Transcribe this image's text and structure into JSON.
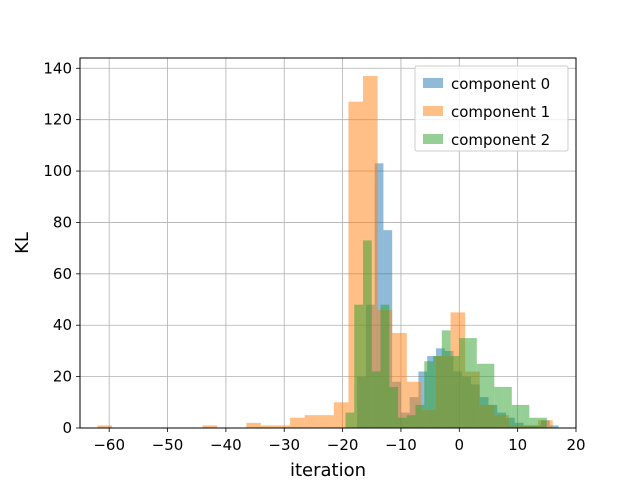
{
  "chart_data": {
    "type": "bar",
    "subtype": "overlapping histogram",
    "xlabel": "iteration",
    "ylabel": "KL",
    "xlim": [
      -65,
      20
    ],
    "ylim": [
      0,
      144
    ],
    "grid": true,
    "legend_position": "top-right",
    "x_ticks": [
      -60,
      -50,
      -40,
      -30,
      -20,
      -10,
      0,
      10,
      20
    ],
    "y_ticks": [
      0,
      20,
      40,
      60,
      80,
      100,
      120,
      140
    ],
    "series": [
      {
        "name": "component 0",
        "color": "#1f77b4",
        "opacity": 0.5,
        "bins": [
          {
            "x0": -17.5,
            "x1": -16.0,
            "value": 20
          },
          {
            "x0": -16.0,
            "x1": -14.5,
            "value": 48
          },
          {
            "x0": -14.5,
            "x1": -13.0,
            "value": 103
          },
          {
            "x0": -13.0,
            "x1": -11.5,
            "value": 77
          },
          {
            "x0": -11.5,
            "x1": -10.0,
            "value": 18
          },
          {
            "x0": -10.0,
            "x1": -8.5,
            "value": 6
          },
          {
            "x0": -8.5,
            "x1": -7.0,
            "value": 12
          },
          {
            "x0": -7.0,
            "x1": -5.5,
            "value": 22
          },
          {
            "x0": -5.5,
            "x1": -4.0,
            "value": 28
          },
          {
            "x0": -4.0,
            "x1": -2.5,
            "value": 31
          },
          {
            "x0": -2.5,
            "x1": -1.0,
            "value": 30
          },
          {
            "x0": -1.0,
            "x1": 0.5,
            "value": 22
          },
          {
            "x0": 0.5,
            "x1": 2.0,
            "value": 20
          },
          {
            "x0": 2.0,
            "x1": 3.5,
            "value": 17
          },
          {
            "x0": 3.5,
            "x1": 5.0,
            "value": 12
          },
          {
            "x0": 5.0,
            "x1": 6.5,
            "value": 9
          },
          {
            "x0": 6.5,
            "x1": 8.0,
            "value": 6
          },
          {
            "x0": 8.0,
            "x1": 9.5,
            "value": 4
          },
          {
            "x0": 9.5,
            "x1": 11.0,
            "value": 2
          },
          {
            "x0": 11.0,
            "x1": 12.5,
            "value": 1
          },
          {
            "x0": 12.5,
            "x1": 14.0,
            "value": 1
          },
          {
            "x0": 14.0,
            "x1": 15.5,
            "value": 3
          },
          {
            "x0": 15.5,
            "x1": 17.0,
            "value": 1
          }
        ]
      },
      {
        "name": "component 1",
        "color": "#ff7f0e",
        "opacity": 0.5,
        "bins": [
          {
            "x0": -62.0,
            "x1": -59.5,
            "value": 1
          },
          {
            "x0": -44.0,
            "x1": -41.5,
            "value": 1
          },
          {
            "x0": -36.5,
            "x1": -34.0,
            "value": 2
          },
          {
            "x0": -34.0,
            "x1": -31.5,
            "value": 1
          },
          {
            "x0": -31.5,
            "x1": -29.0,
            "value": 1
          },
          {
            "x0": -29.0,
            "x1": -26.5,
            "value": 4
          },
          {
            "x0": -26.5,
            "x1": -24.0,
            "value": 5
          },
          {
            "x0": -24.0,
            "x1": -21.5,
            "value": 5
          },
          {
            "x0": -21.5,
            "x1": -19.0,
            "value": 10
          },
          {
            "x0": -19.0,
            "x1": -16.5,
            "value": 127
          },
          {
            "x0": -16.5,
            "x1": -14.0,
            "value": 137
          },
          {
            "x0": -14.0,
            "x1": -11.5,
            "value": 46
          },
          {
            "x0": -11.5,
            "x1": -9.0,
            "value": 37
          },
          {
            "x0": -9.0,
            "x1": -6.5,
            "value": 18
          },
          {
            "x0": -6.5,
            "x1": -4.0,
            "value": 7
          },
          {
            "x0": -4.0,
            "x1": -1.5,
            "value": 28
          },
          {
            "x0": -1.5,
            "x1": 1.0,
            "value": 45
          },
          {
            "x0": 1.0,
            "x1": 3.5,
            "value": 22
          },
          {
            "x0": 3.5,
            "x1": 6.0,
            "value": 9
          },
          {
            "x0": 6.0,
            "x1": 8.5,
            "value": 5
          },
          {
            "x0": 8.5,
            "x1": 11.0,
            "value": 1
          },
          {
            "x0": 11.0,
            "x1": 13.5,
            "value": 1
          },
          {
            "x0": 13.5,
            "x1": 16.0,
            "value": 3
          }
        ]
      },
      {
        "name": "component 2",
        "color": "#2ca02c",
        "opacity": 0.5,
        "bins": [
          {
            "x0": -19.5,
            "x1": -18.0,
            "value": 6
          },
          {
            "x0": -18.0,
            "x1": -16.5,
            "value": 48
          },
          {
            "x0": -16.5,
            "x1": -15.0,
            "value": 73
          },
          {
            "x0": -15.0,
            "x1": -13.5,
            "value": 22
          },
          {
            "x0": -13.5,
            "x1": -12.0,
            "value": 48
          },
          {
            "x0": -12.0,
            "x1": -10.5,
            "value": 16
          },
          {
            "x0": -10.5,
            "x1": -9.0,
            "value": 4
          },
          {
            "x0": -9.0,
            "x1": -7.5,
            "value": 5
          },
          {
            "x0": -7.5,
            "x1": -6.0,
            "value": 9
          },
          {
            "x0": -6.0,
            "x1": -4.5,
            "value": 26
          },
          {
            "x0": -4.5,
            "x1": -3.0,
            "value": 28
          },
          {
            "x0": -3.0,
            "x1": -1.5,
            "value": 38
          },
          {
            "x0": -1.5,
            "x1": 0.0,
            "value": 28
          },
          {
            "x0": 0.0,
            "x1": 1.5,
            "value": 35
          },
          {
            "x0": 1.5,
            "x1": 3.0,
            "value": 35
          },
          {
            "x0": 3.0,
            "x1": 4.5,
            "value": 25
          },
          {
            "x0": 4.5,
            "x1": 6.0,
            "value": 25
          },
          {
            "x0": 6.0,
            "x1": 7.5,
            "value": 16
          },
          {
            "x0": 7.5,
            "x1": 9.0,
            "value": 16
          },
          {
            "x0": 9.0,
            "x1": 10.5,
            "value": 9
          },
          {
            "x0": 10.5,
            "x1": 12.0,
            "value": 9
          },
          {
            "x0": 12.0,
            "x1": 13.5,
            "value": 4
          },
          {
            "x0": 13.5,
            "x1": 15.0,
            "value": 4
          }
        ]
      }
    ]
  }
}
